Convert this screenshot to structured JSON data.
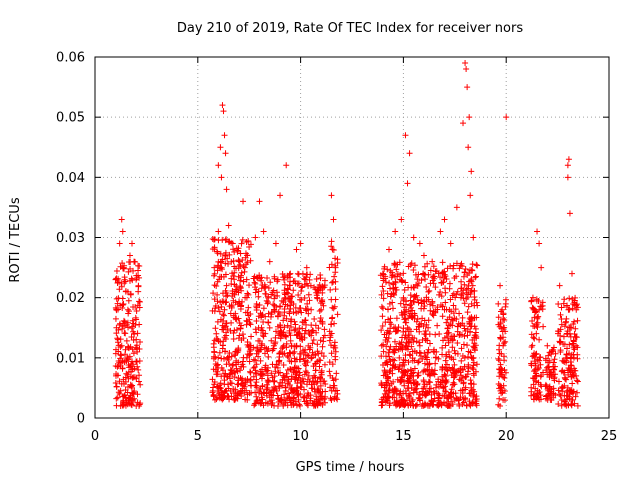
{
  "chart_data": {
    "type": "scatter",
    "title": "Day 210 of 2019, Rate Of TEC Index for receiver nors",
    "xlabel": "GPS time / hours",
    "ylabel": "ROTI / TECUs",
    "xlim": [
      0,
      25
    ],
    "ylim": [
      0,
      0.06
    ],
    "x_ticks": [
      0,
      5,
      10,
      15,
      20,
      25
    ],
    "x_tick_labels": [
      "0",
      "5",
      "10",
      "15",
      "20",
      "25"
    ],
    "y_ticks": [
      0,
      0.01,
      0.02,
      0.03,
      0.04,
      0.05,
      0.06
    ],
    "y_tick_labels": [
      "0",
      "0.01",
      "0.02",
      "0.03",
      "0.04",
      "0.05",
      "0.06"
    ],
    "grid": true,
    "marker": "+",
    "color": "#ff0000",
    "series": [
      {
        "name": "ROTI",
        "points": [
          [
            1.0,
            0.023
          ],
          [
            1.1,
            0.019
          ],
          [
            1.2,
            0.029
          ],
          [
            1.3,
            0.033
          ],
          [
            1.35,
            0.031
          ],
          [
            1.4,
            0.025
          ],
          [
            1.5,
            0.021
          ],
          [
            1.6,
            0.018
          ],
          [
            1.7,
            0.027
          ],
          [
            1.8,
            0.029
          ],
          [
            1.9,
            0.026
          ],
          [
            2.0,
            0.023
          ],
          [
            2.1,
            0.021
          ],
          [
            1.2,
            0.004
          ],
          [
            1.5,
            0.006
          ],
          [
            1.8,
            0.005
          ],
          [
            2.1,
            0.008
          ],
          [
            1.3,
            0.012
          ],
          [
            1.6,
            0.01
          ],
          [
            1.9,
            0.014
          ],
          [
            1.25,
            0.002
          ],
          [
            1.45,
            0.016
          ],
          [
            1.75,
            0.009
          ],
          [
            2.05,
            0.011
          ],
          [
            6.0,
            0.042
          ],
          [
            6.1,
            0.045
          ],
          [
            6.2,
            0.052
          ],
          [
            6.25,
            0.051
          ],
          [
            6.3,
            0.047
          ],
          [
            6.35,
            0.044
          ],
          [
            6.15,
            0.04
          ],
          [
            6.4,
            0.038
          ],
          [
            6.5,
            0.032
          ],
          [
            6.7,
            0.029
          ],
          [
            7.0,
            0.026
          ],
          [
            7.2,
            0.036
          ],
          [
            7.4,
            0.027
          ],
          [
            6.0,
            0.031
          ],
          [
            5.8,
            0.025
          ],
          [
            6.1,
            0.005
          ],
          [
            6.6,
            0.008
          ],
          [
            7.1,
            0.004
          ],
          [
            7.5,
            0.012
          ],
          [
            5.9,
            0.014
          ],
          [
            6.8,
            0.003
          ],
          [
            6.3,
            0.018
          ],
          [
            7.3,
            0.02
          ],
          [
            6.45,
            0.01
          ],
          [
            7.8,
            0.03
          ],
          [
            8.0,
            0.036
          ],
          [
            8.2,
            0.031
          ],
          [
            8.5,
            0.026
          ],
          [
            8.8,
            0.029
          ],
          [
            9.0,
            0.037
          ],
          [
            9.3,
            0.042
          ],
          [
            9.5,
            0.024
          ],
          [
            9.8,
            0.028
          ],
          [
            10.0,
            0.029
          ],
          [
            10.3,
            0.025
          ],
          [
            10.5,
            0.022
          ],
          [
            10.8,
            0.02
          ],
          [
            11.0,
            0.018
          ],
          [
            7.9,
            0.003
          ],
          [
            8.4,
            0.005
          ],
          [
            8.9,
            0.002
          ],
          [
            9.4,
            0.006
          ],
          [
            9.9,
            0.004
          ],
          [
            10.4,
            0.007
          ],
          [
            10.9,
            0.003
          ],
          [
            8.1,
            0.015
          ],
          [
            8.7,
            0.012
          ],
          [
            9.2,
            0.017
          ],
          [
            9.7,
            0.011
          ],
          [
            10.2,
            0.014
          ],
          [
            10.7,
            0.009
          ],
          [
            11.5,
            0.037
          ],
          [
            11.6,
            0.033
          ],
          [
            11.55,
            0.028
          ],
          [
            11.7,
            0.025
          ],
          [
            11.6,
            0.005
          ],
          [
            11.5,
            0.003
          ],
          [
            11.65,
            0.012
          ],
          [
            14.0,
            0.024
          ],
          [
            14.3,
            0.028
          ],
          [
            14.6,
            0.031
          ],
          [
            14.9,
            0.033
          ],
          [
            15.1,
            0.047
          ],
          [
            15.2,
            0.039
          ],
          [
            15.3,
            0.044
          ],
          [
            15.5,
            0.03
          ],
          [
            15.8,
            0.029
          ],
          [
            16.0,
            0.027
          ],
          [
            16.4,
            0.026
          ],
          [
            16.8,
            0.031
          ],
          [
            17.0,
            0.033
          ],
          [
            17.3,
            0.029
          ],
          [
            17.6,
            0.035
          ],
          [
            17.9,
            0.049
          ],
          [
            18.0,
            0.059
          ],
          [
            18.05,
            0.058
          ],
          [
            18.1,
            0.055
          ],
          [
            18.2,
            0.05
          ],
          [
            18.15,
            0.045
          ],
          [
            18.3,
            0.041
          ],
          [
            18.25,
            0.037
          ],
          [
            18.4,
            0.03
          ],
          [
            14.1,
            0.004
          ],
          [
            14.5,
            0.006
          ],
          [
            14.9,
            0.003
          ],
          [
            15.4,
            0.005
          ],
          [
            15.9,
            0.002
          ],
          [
            16.3,
            0.007
          ],
          [
            16.7,
            0.004
          ],
          [
            17.1,
            0.006
          ],
          [
            17.5,
            0.003
          ],
          [
            17.9,
            0.008
          ],
          [
            18.3,
            0.005
          ],
          [
            14.3,
            0.014
          ],
          [
            14.8,
            0.01
          ],
          [
            15.3,
            0.017
          ],
          [
            15.8,
            0.012
          ],
          [
            16.2,
            0.015
          ],
          [
            16.6,
            0.011
          ],
          [
            17.0,
            0.018
          ],
          [
            17.4,
            0.013
          ],
          [
            17.8,
            0.02
          ],
          [
            18.2,
            0.016
          ],
          [
            19.7,
            0.022
          ],
          [
            19.8,
            0.018
          ],
          [
            19.9,
            0.015
          ],
          [
            19.8,
            0.008
          ],
          [
            19.7,
            0.002
          ],
          [
            19.85,
            0.012
          ],
          [
            20.0,
            0.05
          ],
          [
            21.3,
            0.02
          ],
          [
            21.4,
            0.018
          ],
          [
            21.5,
            0.031
          ],
          [
            21.6,
            0.029
          ],
          [
            21.7,
            0.025
          ],
          [
            21.5,
            0.004
          ],
          [
            21.4,
            0.008
          ],
          [
            21.6,
            0.013
          ],
          [
            22.0,
            0.012
          ],
          [
            22.2,
            0.011
          ],
          [
            22.1,
            0.005
          ],
          [
            22.3,
            0.008
          ],
          [
            22.2,
            0.003
          ],
          [
            22.6,
            0.022
          ],
          [
            22.8,
            0.019
          ],
          [
            22.7,
            0.003
          ],
          [
            23.0,
            0.042
          ],
          [
            23.05,
            0.043
          ],
          [
            23.0,
            0.04
          ],
          [
            23.1,
            0.034
          ],
          [
            23.2,
            0.024
          ],
          [
            23.3,
            0.016
          ],
          [
            23.4,
            0.012
          ],
          [
            23.0,
            0.005
          ],
          [
            23.2,
            0.003
          ],
          [
            23.4,
            0.007
          ],
          [
            22.9,
            0.01
          ],
          [
            23.1,
            0.014
          ]
        ],
        "clusters": [
          {
            "x_range": [
              1.0,
              2.2
            ],
            "y_range": [
              0.002,
              0.026
            ],
            "count": 220
          },
          {
            "x_range": [
              5.7,
              7.6
            ],
            "y_range": [
              0.003,
              0.03
            ],
            "count": 380
          },
          {
            "x_range": [
              7.7,
              11.2
            ],
            "y_range": [
              0.002,
              0.024
            ],
            "count": 650
          },
          {
            "x_range": [
              11.4,
              11.8
            ],
            "y_range": [
              0.003,
              0.03
            ],
            "count": 60
          },
          {
            "x_range": [
              13.9,
              18.6
            ],
            "y_range": [
              0.002,
              0.026
            ],
            "count": 900
          },
          {
            "x_range": [
              19.6,
              20.0
            ],
            "y_range": [
              0.002,
              0.02
            ],
            "count": 60
          },
          {
            "x_range": [
              21.2,
              21.8
            ],
            "y_range": [
              0.003,
              0.02
            ],
            "count": 90
          },
          {
            "x_range": [
              21.9,
              22.4
            ],
            "y_range": [
              0.003,
              0.012
            ],
            "count": 60
          },
          {
            "x_range": [
              22.5,
              23.5
            ],
            "y_range": [
              0.002,
              0.02
            ],
            "count": 150
          }
        ]
      }
    ]
  }
}
